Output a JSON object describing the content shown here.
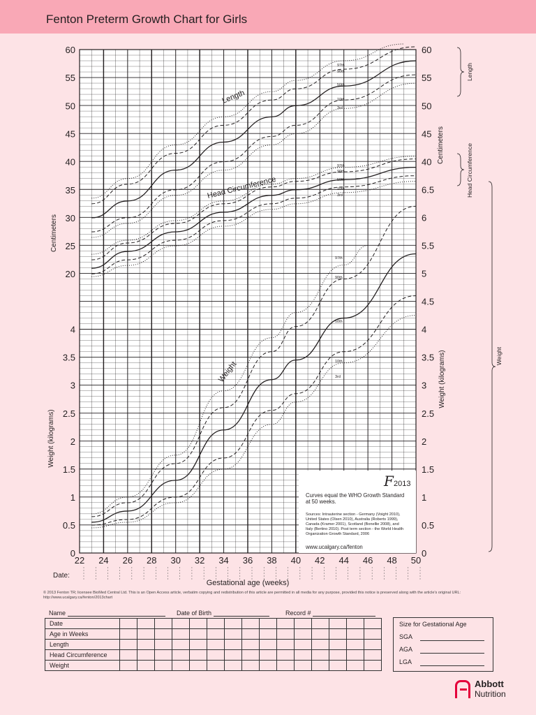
{
  "title": "Fenton Preterm Growth Chart for Girls",
  "chart_data": {
    "type": "line",
    "x_axis": {
      "label": "Gestational age (weeks)",
      "range": [
        22,
        50
      ],
      "ticks": [
        22,
        24,
        26,
        28,
        30,
        32,
        34,
        36,
        38,
        40,
        42,
        44,
        46,
        48,
        50
      ],
      "date_label": "Date:"
    },
    "left_axis": {
      "upper_label": "Centimeters",
      "upper_ticks": [
        20,
        25,
        30,
        35,
        40,
        45,
        50,
        55,
        60
      ],
      "lower_label": "Weight (kilograms)",
      "lower_ticks": [
        0,
        0.5,
        1,
        1.5,
        2,
        2.5,
        3,
        3.5,
        4
      ]
    },
    "right_axis": {
      "cm_label": "Centimeters",
      "cm_ticks": [
        40,
        45,
        50,
        55,
        60
      ],
      "weight_label": "Weight (kilograms)",
      "weight_ticks": [
        0,
        0.5,
        1,
        1.5,
        2,
        2.5,
        3,
        3.5,
        4,
        4.5,
        5,
        5.5,
        6,
        6.5
      ]
    },
    "brackets": [
      "Length",
      "Head Circumference",
      "Weight"
    ],
    "percentile_labels": [
      "97th",
      "90th",
      "50th",
      "10th",
      "3rd"
    ],
    "groups": [
      {
        "name": "Length",
        "axis": "cm",
        "series": [
          {
            "name": "3rd",
            "style": "dotted",
            "x": [
              23,
              26,
              30,
              34,
              38,
              40,
              44,
              50
            ],
            "y": [
              26.5,
              29,
              34,
              38.5,
              43,
              45,
              49.5,
              54
            ]
          },
          {
            "name": "10th",
            "style": "dashed",
            "x": [
              23,
              26,
              30,
              34,
              38,
              40,
              44,
              50
            ],
            "y": [
              27.5,
              30,
              35,
              40,
              44.5,
              46.5,
              51,
              55.5
            ]
          },
          {
            "name": "50th",
            "style": "solid",
            "x": [
              23,
              26,
              30,
              34,
              38,
              40,
              44,
              50
            ],
            "y": [
              30,
              33,
              38.5,
              43.5,
              48,
              50,
              53.5,
              58
            ]
          },
          {
            "name": "90th",
            "style": "dashed",
            "x": [
              23,
              26,
              30,
              34,
              38,
              40,
              44,
              50
            ],
            "y": [
              32.5,
              36,
              41.5,
              46.5,
              51,
              53,
              56.5,
              60.5
            ]
          },
          {
            "name": "97th",
            "style": "dotted",
            "x": [
              23,
              26,
              30,
              34,
              38,
              40,
              44,
              49
            ],
            "y": [
              33.5,
              37,
              43,
              48,
              52.5,
              54.5,
              58,
              61
            ]
          }
        ]
      },
      {
        "name": "Head Circumference",
        "axis": "cm",
        "series": [
          {
            "name": "3rd",
            "style": "dotted",
            "x": [
              23,
              26,
              30,
              34,
              38,
              40,
              44,
              50
            ],
            "y": [
              19.5,
              21.5,
              25,
              28.5,
              31.5,
              32.5,
              34.5,
              36.5
            ]
          },
          {
            "name": "10th",
            "style": "dashed",
            "x": [
              23,
              26,
              30,
              34,
              38,
              40,
              44,
              50
            ],
            "y": [
              20,
              22.5,
              26,
              29.5,
              32.5,
              33.5,
              35.5,
              37.5
            ]
          },
          {
            "name": "50th",
            "style": "solid",
            "x": [
              23,
              26,
              30,
              34,
              38,
              40,
              44,
              50
            ],
            "y": [
              21,
              24,
              27.5,
              31,
              34,
              35,
              36.8,
              39
            ]
          },
          {
            "name": "90th",
            "style": "dashed",
            "x": [
              23,
              26,
              30,
              34,
              38,
              40,
              44,
              50
            ],
            "y": [
              22.5,
              25.5,
              29,
              32.5,
              35.5,
              36.5,
              38.2,
              40.5
            ]
          },
          {
            "name": "97th",
            "style": "dotted",
            "x": [
              23,
              26,
              30,
              34,
              38,
              40,
              44,
              50
            ],
            "y": [
              23.5,
              26,
              29.5,
              33,
              36,
              37,
              39,
              41
            ]
          }
        ]
      },
      {
        "name": "Weight",
        "axis": "kg",
        "series": [
          {
            "name": "3rd",
            "style": "dotted",
            "x": [
              23,
              26,
              30,
              34,
              38,
              40,
              44,
              50
            ],
            "y": [
              0.45,
              0.55,
              0.9,
              1.5,
              2.3,
              2.7,
              3.4,
              4.25
            ]
          },
          {
            "name": "10th",
            "style": "dashed",
            "x": [
              23,
              26,
              30,
              34,
              38,
              40,
              44,
              50
            ],
            "y": [
              0.5,
              0.6,
              1.0,
              1.7,
              2.55,
              2.85,
              3.6,
              4.6
            ]
          },
          {
            "name": "50th",
            "style": "solid",
            "x": [
              23,
              26,
              30,
              34,
              38,
              40,
              44,
              50
            ],
            "y": [
              0.55,
              0.75,
              1.3,
              2.2,
              3.1,
              3.45,
              4.2,
              5.35
            ]
          },
          {
            "name": "90th",
            "style": "dashed",
            "x": [
              23,
              26,
              30,
              34,
              38,
              40,
              44,
              50
            ],
            "y": [
              0.65,
              0.9,
              1.6,
              2.6,
              3.6,
              4.05,
              4.9,
              6.2
            ]
          },
          {
            "name": "97th",
            "style": "dotted",
            "x": [
              23,
              26,
              30,
              34,
              38,
              40,
              44,
              46
            ],
            "y": [
              0.7,
              1.0,
              1.75,
              2.9,
              3.85,
              4.3,
              5.15,
              5.5
            ]
          }
        ]
      }
    ],
    "annotation": {
      "logo": "F",
      "year": "2013",
      "lines": [
        "Curves equal the WHO Growth Standard",
        "at 50 weeks.",
        "Sources: Intrauterine section - Germany (Voight 2010),",
        "United States (Olsen 2010), Australia (Roberts 1999),",
        "Canada (Kramer 2001), Scotland (Bonellie 2008), and",
        "Italy (Bertino 2010). Post term section - the World Health",
        "Organization Growth Standard, 2006"
      ],
      "url": "www.ucalgary.ca/fenton"
    }
  },
  "notice": "© 2013 Fenton TR; licensee BioMed Central Ltd. This is an Open Access article, verbatim copying and redistribution of this article are permitted in all media for any purpose, provided this notice is preserved along with the article's original URL: http://www.ucalgary.ca/fenton/2013chart",
  "form": {
    "name_label": "Name",
    "dob_label": "Date of Birth",
    "record_label": "Record #",
    "rows": [
      "Date",
      "Age in Weeks",
      "Length",
      "Head Circumference",
      "Weight"
    ],
    "sga_title": "Size for Gestational Age",
    "sga_options": [
      "SGA",
      "AGA",
      "LGA"
    ]
  },
  "brand": {
    "name": "Abbott",
    "sub": "Nutrition"
  }
}
